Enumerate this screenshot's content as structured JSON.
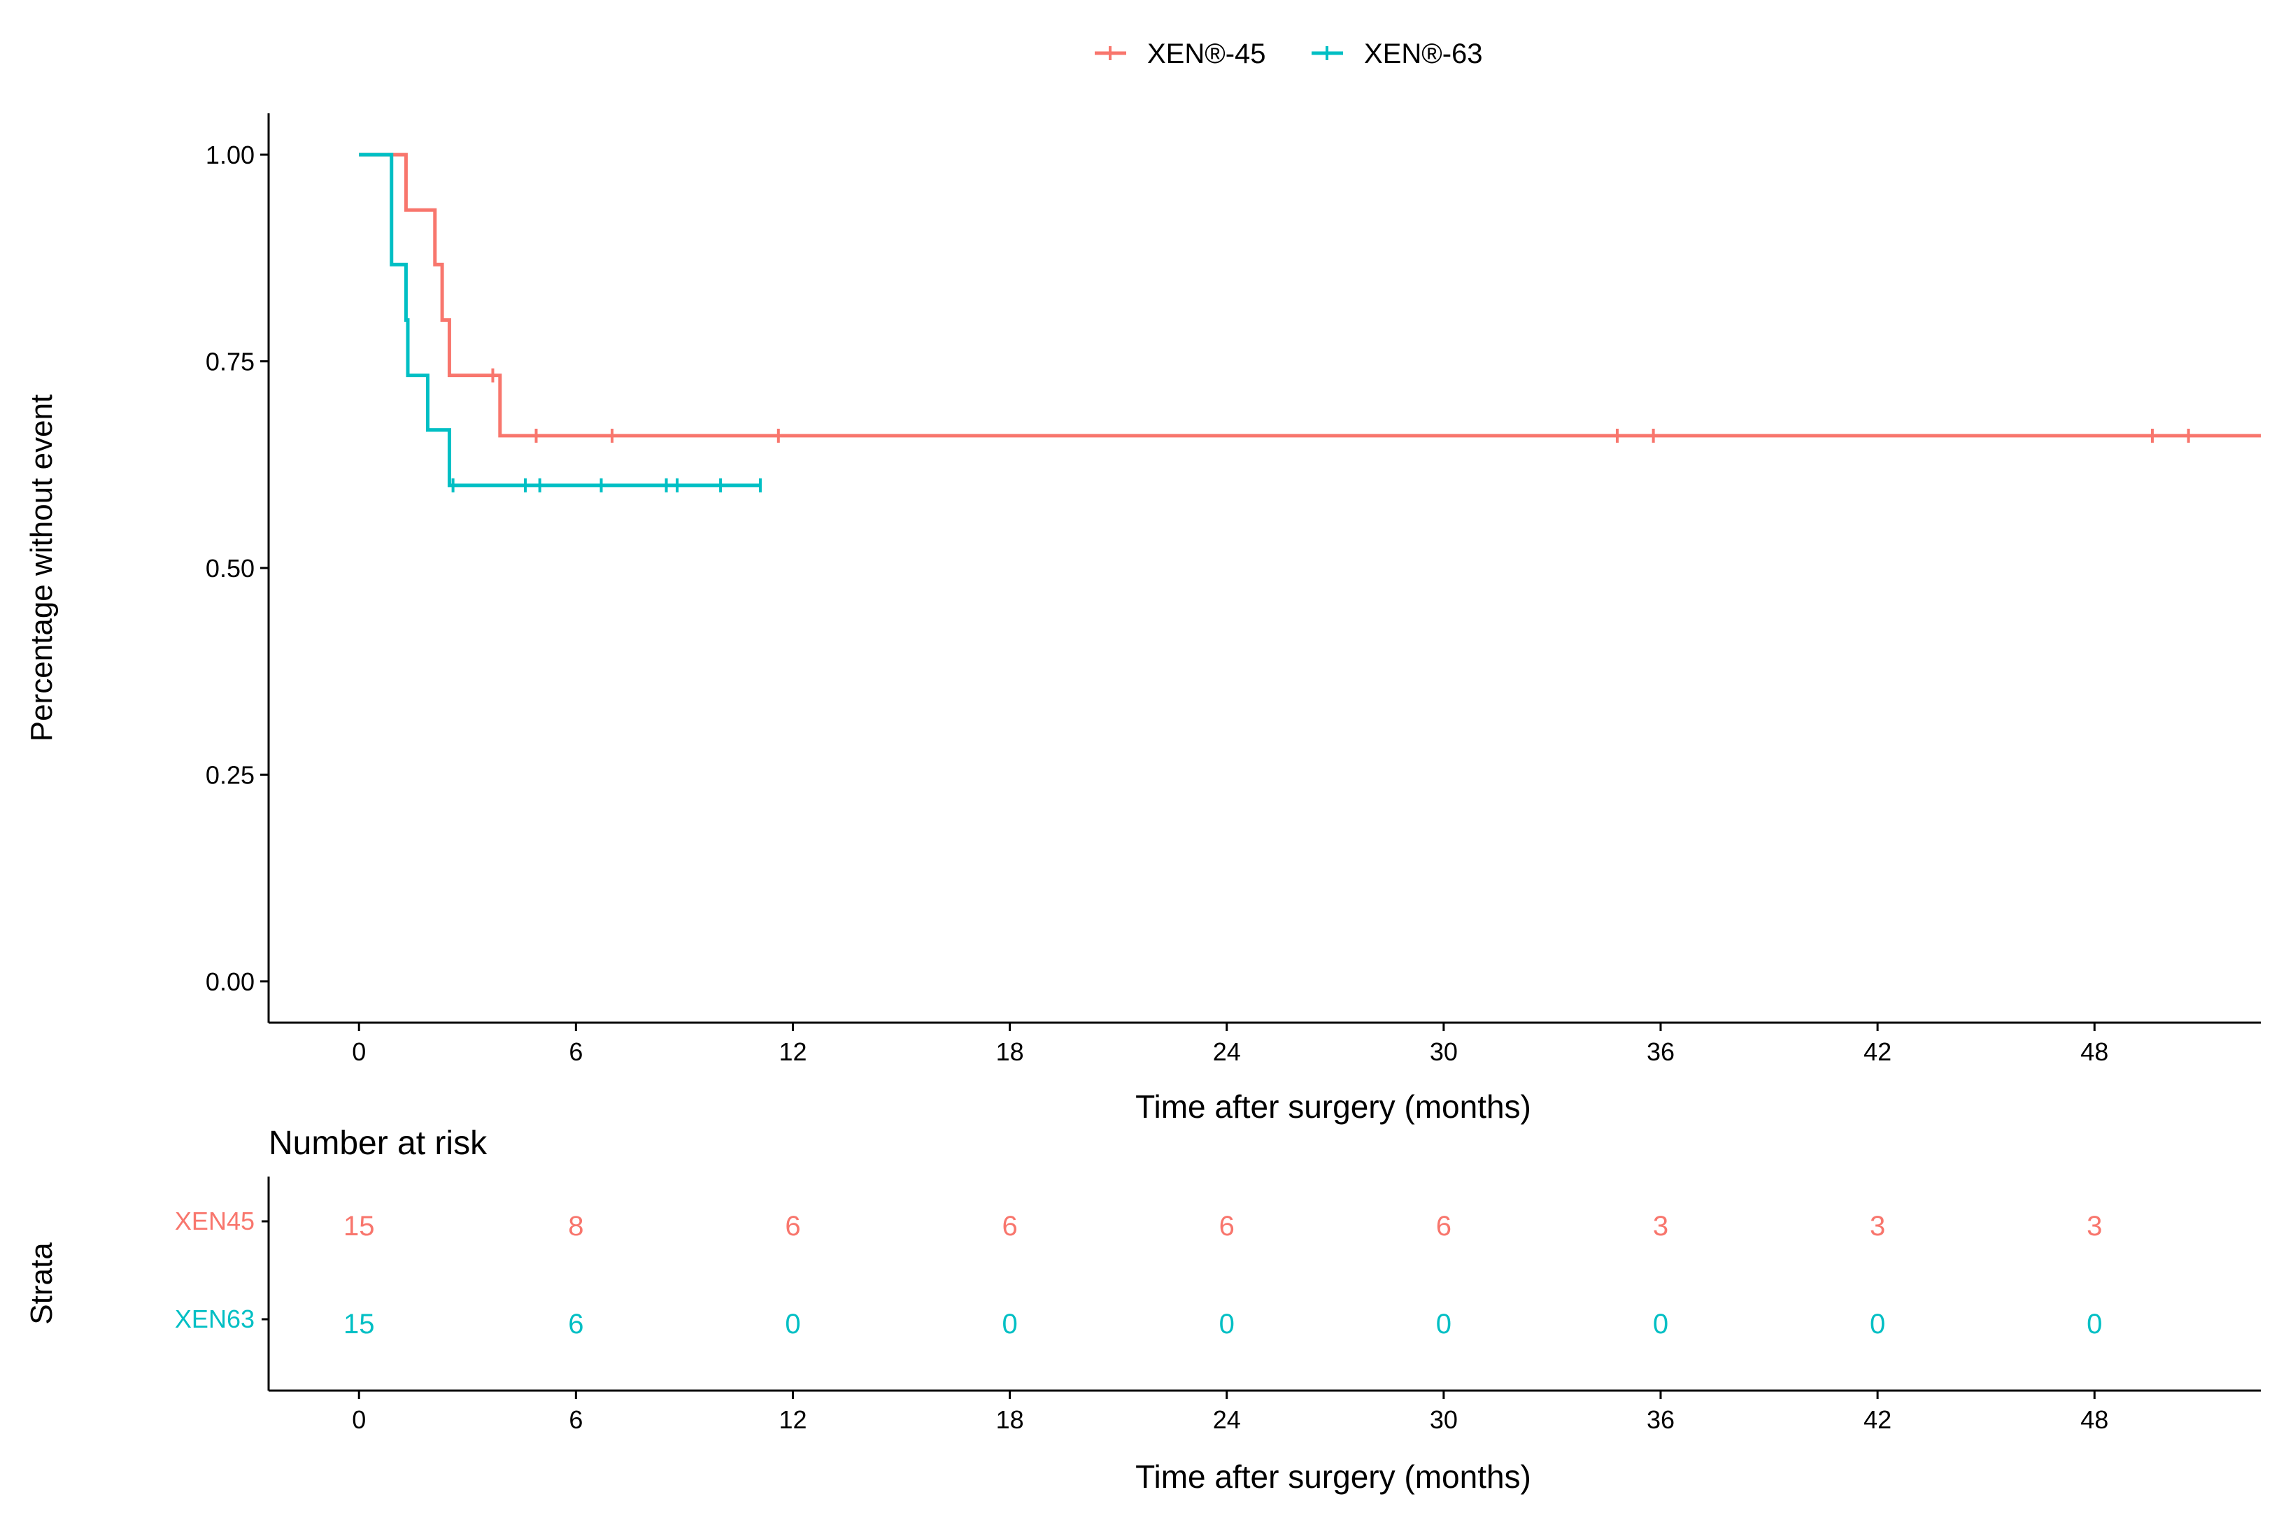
{
  "legend": {
    "items": [
      {
        "label": "XEN®-45",
        "color": "#F8766D"
      },
      {
        "label": "XEN®-63",
        "color": "#00BFC4"
      }
    ]
  },
  "chart_data": [
    {
      "type": "line",
      "subtype": "kaplan-meier-step",
      "title": "",
      "xlabel": "Time after surgery (months)",
      "ylabel": "Percentage without event",
      "xlim": [
        -2.5,
        52.6
      ],
      "ylim": [
        -0.05,
        1.05
      ],
      "xticks": [
        0,
        6,
        12,
        18,
        24,
        30,
        36,
        42,
        48
      ],
      "yticks": [
        0,
        0.25,
        0.5,
        0.75,
        1.0
      ],
      "ytick_labels": [
        "0.00",
        "0.25",
        "0.50",
        "0.75",
        "1.00"
      ],
      "legend_position": "top",
      "series": [
        {
          "name": "XEN®-45",
          "color": "#F8766D",
          "steps": [
            [
              0,
              1.0
            ],
            [
              1.3,
              0.933
            ],
            [
              2.1,
              0.867
            ],
            [
              2.3,
              0.8
            ],
            [
              2.5,
              0.733
            ],
            [
              3.9,
              0.66
            ],
            [
              52.6,
              0.66
            ]
          ],
          "censor_times": [
            3.7,
            4.9,
            7.0,
            11.6,
            34.8,
            35.8,
            49.6,
            50.6
          ]
        },
        {
          "name": "XEN®-63",
          "color": "#00BFC4",
          "steps": [
            [
              0,
              1.0
            ],
            [
              0.9,
              0.867
            ],
            [
              1.3,
              0.8
            ],
            [
              1.35,
              0.733
            ],
            [
              1.9,
              0.667
            ],
            [
              2.5,
              0.6
            ],
            [
              11.1,
              0.6
            ]
          ],
          "censor_times": [
            2.6,
            4.6,
            5.0,
            6.7,
            8.5,
            8.8,
            10.0,
            11.1
          ]
        }
      ]
    },
    {
      "type": "table",
      "title": "Number at risk",
      "ylabel": "Strata",
      "xlabel": "Time after surgery (months)",
      "xticks": [
        0,
        6,
        12,
        18,
        24,
        30,
        36,
        42,
        48
      ],
      "rows": [
        {
          "name": "XEN45",
          "color": "#F8766D",
          "values": [
            15,
            8,
            6,
            6,
            6,
            6,
            3,
            3,
            3
          ]
        },
        {
          "name": "XEN63",
          "color": "#00BFC4",
          "values": [
            15,
            6,
            0,
            0,
            0,
            0,
            0,
            0,
            0
          ]
        }
      ]
    }
  ]
}
